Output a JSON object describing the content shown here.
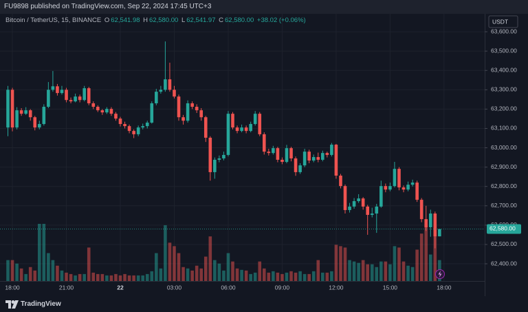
{
  "header": {
    "published": "FU9898 published on TradingView.com, Sep 22, 2024 17:45 UTC+3",
    "brand": "TradingView"
  },
  "chart_data": {
    "type": "candlestick",
    "symbol": "Bitcoin / TetherUS, 15, BINANCE",
    "ohlc_legend": {
      "o_label": "O",
      "o": "62,541.98",
      "h_label": "H",
      "h": "62,580.00",
      "l_label": "L",
      "l": "62,541.97",
      "c_label": "C",
      "c": "62,580.00",
      "change": "+38.02 (+0.06%)"
    },
    "y_axis_label": "USDT",
    "last_price_label": "62,580.00",
    "up_color": "#26a69a",
    "down_color": "#ef5350",
    "grid": true,
    "x": [
      "21 17:45",
      "21 18:00",
      "21 18:15",
      "21 18:30",
      "21 18:45",
      "21 19:00",
      "21 19:15",
      "21 19:30",
      "21 19:45",
      "21 20:00",
      "21 20:15",
      "21 20:30",
      "21 20:45",
      "21 21:00",
      "21 21:15",
      "21 21:30",
      "21 21:45",
      "21 22:00",
      "21 22:15",
      "21 22:30",
      "21 22:45",
      "21 23:00",
      "21 23:15",
      "21 23:30",
      "21 23:45",
      "22 00:00",
      "22 00:15",
      "22 00:30",
      "22 00:45",
      "22 01:00",
      "22 01:15",
      "22 01:30",
      "22 01:45",
      "22 02:00",
      "22 02:15",
      "22 02:30",
      "22 02:45",
      "22 03:00",
      "22 03:15",
      "22 03:30",
      "22 03:45",
      "22 04:00",
      "22 04:15",
      "22 04:30",
      "22 04:45",
      "22 05:00",
      "22 05:15",
      "22 05:30",
      "22 05:45",
      "22 06:00",
      "22 06:15",
      "22 06:30",
      "22 06:45",
      "22 07:00",
      "22 07:15",
      "22 07:30",
      "22 07:45",
      "22 08:00",
      "22 08:15",
      "22 08:30",
      "22 08:45",
      "22 09:00",
      "22 09:15",
      "22 09:30",
      "22 09:45",
      "22 10:00",
      "22 10:15",
      "22 10:30",
      "22 10:45",
      "22 11:00",
      "22 11:15",
      "22 11:30",
      "22 11:45",
      "22 12:00",
      "22 12:15",
      "22 12:30",
      "22 12:45",
      "22 13:00",
      "22 13:15",
      "22 13:30",
      "22 13:45",
      "22 14:00",
      "22 14:15",
      "22 14:30",
      "22 14:45",
      "22 15:00",
      "22 15:15",
      "22 15:30",
      "22 15:45",
      "22 16:00",
      "22 16:15",
      "22 16:30",
      "22 16:45",
      "22 17:00",
      "22 17:15",
      "22 17:30",
      "22 17:45"
    ],
    "open": [
      63105,
      63300,
      63105,
      63194,
      63176,
      63194,
      63158,
      63105,
      63123,
      63212,
      63300,
      63318,
      63283,
      63300,
      63247,
      63240,
      63265,
      63247,
      63308,
      63230,
      63212,
      63194,
      63183,
      63201,
      63176,
      63151,
      63123,
      63112,
      63087,
      63070,
      63105,
      63112,
      63130,
      63230,
      63290,
      63300,
      63354,
      63300,
      63265,
      63158,
      63140,
      63230,
      63212,
      63194,
      63158,
      63052,
      62874,
      62938,
      62945,
      62963,
      63176,
      63105,
      63087,
      63105,
      63087,
      63123,
      63176,
      63070,
      62980,
      62973,
      62998,
      62938,
      62927,
      62998,
      62945,
      62874,
      62909,
      62980,
      62934,
      62952,
      62938,
      62973,
      62963,
      63016,
      62856,
      62802,
      62678,
      62696,
      62724,
      62738,
      62696,
      62653,
      62660,
      62696,
      62802,
      62784,
      62802,
      62891,
      62795,
      62784,
      62809,
      62820,
      62731,
      62631,
      62589,
      62660,
      62541.98
    ],
    "high": [
      63320,
      63310,
      63210,
      63205,
      63210,
      63200,
      63165,
      63140,
      63225,
      63340,
      63397,
      63330,
      63320,
      63310,
      63260,
      63280,
      63275,
      63320,
      63315,
      63240,
      63220,
      63200,
      63210,
      63210,
      63185,
      63160,
      63135,
      63120,
      63095,
      63115,
      63125,
      63140,
      63240,
      63305,
      63320,
      63550,
      63440,
      63320,
      63275,
      63170,
      63245,
      63240,
      63225,
      63205,
      63165,
      63060,
      62950,
      62960,
      62980,
      63190,
      63185,
      63115,
      63120,
      63115,
      63135,
      63190,
      63185,
      63080,
      62995,
      63010,
      63005,
      62950,
      63015,
      63005,
      62955,
      62920,
      62995,
      62990,
      62965,
      62975,
      62985,
      62980,
      63025,
      63020,
      62865,
      62810,
      62715,
      62740,
      62760,
      62745,
      62705,
      62690,
      62710,
      62830,
      62815,
      62820,
      62927,
      62900,
      62805,
      62825,
      62835,
      62830,
      62740,
      62700,
      62680,
      62670,
      62580
    ],
    "low": [
      63060,
      63085,
      63095,
      63165,
      63170,
      63140,
      63090,
      63095,
      63115,
      63205,
      63290,
      63270,
      63275,
      63235,
      63230,
      63235,
      63235,
      63240,
      63220,
      63200,
      63185,
      63170,
      63175,
      63165,
      63140,
      63110,
      63100,
      63075,
      63050,
      63060,
      63095,
      63100,
      63125,
      63220,
      63280,
      63290,
      63290,
      63255,
      63140,
      63120,
      63130,
      63200,
      63180,
      63140,
      63030,
      62830,
      62840,
      62925,
      62935,
      62955,
      63095,
      63075,
      63080,
      63075,
      63080,
      63115,
      63060,
      62965,
      62960,
      62965,
      62925,
      62915,
      62920,
      62930,
      62855,
      62865,
      62900,
      62920,
      62925,
      62925,
      62930,
      62950,
      62955,
      62840,
      62790,
      62660,
      62665,
      62685,
      62715,
      62680,
      62550,
      62640,
      62560,
      62690,
      62770,
      62775,
      62795,
      62780,
      62770,
      62775,
      62800,
      62720,
      62615,
      62570,
      62540,
      62480,
      62541.97
    ],
    "close": [
      63300,
      63105,
      63194,
      63176,
      63194,
      63158,
      63105,
      63123,
      63212,
      63300,
      63318,
      63283,
      63300,
      63247,
      63240,
      63265,
      63247,
      63308,
      63230,
      63212,
      63194,
      63183,
      63201,
      63176,
      63151,
      63123,
      63112,
      63087,
      63070,
      63105,
      63112,
      63130,
      63230,
      63290,
      63300,
      63354,
      63300,
      63265,
      63158,
      63140,
      63230,
      63212,
      63194,
      63158,
      63052,
      62874,
      62938,
      62945,
      62963,
      63176,
      63105,
      63087,
      63105,
      63087,
      63123,
      63176,
      63070,
      62980,
      62973,
      62998,
      62938,
      62927,
      62998,
      62945,
      62874,
      62909,
      62980,
      62934,
      62952,
      62938,
      62973,
      62963,
      63016,
      62856,
      62802,
      62678,
      62696,
      62724,
      62738,
      62696,
      62653,
      62660,
      62696,
      62802,
      62784,
      62802,
      62891,
      62795,
      62784,
      62809,
      62820,
      62731,
      62631,
      62589,
      62660,
      62541.98,
      62580
    ],
    "volume": [
      30,
      30,
      25,
      18,
      10,
      20,
      15,
      82,
      82,
      40,
      30,
      22,
      15,
      12,
      10,
      8,
      10,
      10,
      48,
      12,
      10,
      10,
      8,
      8,
      10,
      8,
      10,
      8,
      8,
      8,
      8,
      10,
      14,
      40,
      18,
      80,
      55,
      50,
      40,
      20,
      18,
      15,
      22,
      18,
      35,
      64,
      30,
      25,
      15,
      40,
      28,
      18,
      16,
      15,
      10,
      12,
      28,
      18,
      12,
      14,
      12,
      10,
      12,
      14,
      12,
      14,
      10,
      10,
      14,
      30,
      12,
      12,
      14,
      52,
      50,
      48,
      30,
      28,
      26,
      30,
      24,
      24,
      20,
      28,
      28,
      24,
      50,
      48,
      28,
      22,
      20,
      45,
      68,
      82,
      38,
      80,
      30
    ],
    "ylim": [
      62311,
      63693
    ],
    "yticks": [
      {
        "value": 62400,
        "label": "62,400.00"
      },
      {
        "value": 62500,
        "label": "62,500.00"
      },
      {
        "value": 62600,
        "label": "62,600.00"
      },
      {
        "value": 62700,
        "label": "62,700.00"
      },
      {
        "value": 62800,
        "label": "62,800.00"
      },
      {
        "value": 62900,
        "label": "62,900.00"
      },
      {
        "value": 63000,
        "label": "63,000.00"
      },
      {
        "value": 63100,
        "label": "63,100.00"
      },
      {
        "value": 63200,
        "label": "63,200.00"
      },
      {
        "value": 63300,
        "label": "63,300.00"
      },
      {
        "value": 63400,
        "label": "63,400.00"
      },
      {
        "value": 63500,
        "label": "63,500.00"
      },
      {
        "value": 63600,
        "label": "63,600.00"
      }
    ],
    "xticks": [
      {
        "value": "21 18:00",
        "label": "18:00"
      },
      {
        "value": "21 21:00",
        "label": "21:00"
      },
      {
        "value": "22 00:00",
        "label": "22"
      },
      {
        "value": "22 03:00",
        "label": "03:00"
      },
      {
        "value": "22 06:00",
        "label": "06:00"
      },
      {
        "value": "22 09:00",
        "label": "09:00"
      },
      {
        "value": "22 12:00",
        "label": "12:00"
      },
      {
        "value": "22 15:00",
        "label": "15:00"
      },
      {
        "value": "22 18:00",
        "label": "18:00"
      }
    ]
  }
}
